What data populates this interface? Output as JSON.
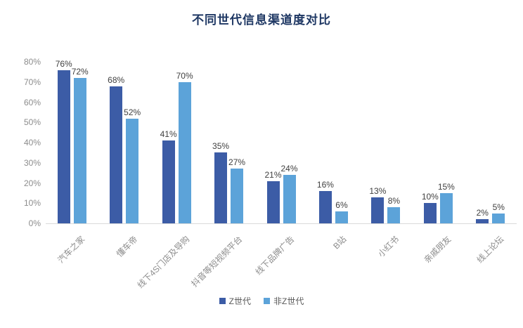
{
  "chart_data": {
    "type": "bar",
    "title": "不同世代信息渠道度对比",
    "categories": [
      "汽车之家",
      "懂车帝",
      "线下4S门店及导购",
      "抖音等短视频平台",
      "线下品牌广告",
      "B站",
      "小红书",
      "亲戚朋友",
      "线上论坛"
    ],
    "series": [
      {
        "name": "Z世代",
        "color": "#3C5CA6",
        "values": [
          76,
          68,
          41,
          35,
          21,
          16,
          13,
          10,
          2
        ]
      },
      {
        "name": "非Z世代",
        "color": "#5CA3D9",
        "values": [
          72,
          52,
          70,
          27,
          24,
          6,
          8,
          15,
          5
        ]
      }
    ],
    "xlabel": "",
    "ylabel": "",
    "ylim": [
      0,
      80
    ],
    "ytick_step": 10,
    "ytick_labels": [
      "0%",
      "10%",
      "20%",
      "30%",
      "40%",
      "50%",
      "60%",
      "70%",
      "80%"
    ],
    "value_label_suffix": "%",
    "grid": false,
    "legend_position": "bottom",
    "x_label_rotation_deg": -45
  },
  "colors": {
    "title": "#1F3864",
    "value_label": "#404040",
    "axis_label": "#8C8C8C",
    "axis_line": "#D9D9D9",
    "legend_text": "#595959",
    "background": "#FFFFFF"
  }
}
